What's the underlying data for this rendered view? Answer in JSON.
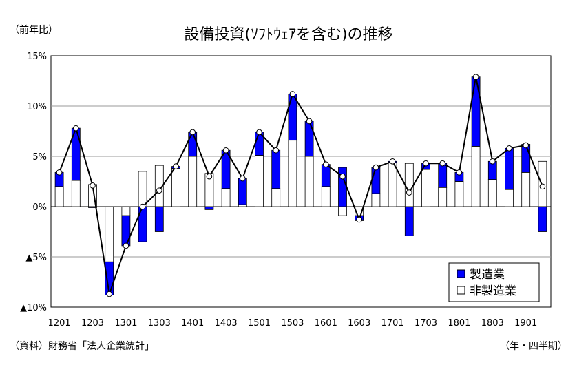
{
  "chart_data": {
    "type": "bar",
    "title": "設備投資(ｿﾌﾄｳｪｱを含む)の推移",
    "y_unit_label": "（前年比）",
    "x_unit_label": "（年・四半期）",
    "source": "（資料）財務省「法人企業統計」",
    "ylim": [
      -10,
      15
    ],
    "y_ticks": [
      15,
      10,
      5,
      0,
      -5,
      -10
    ],
    "y_tick_labels": [
      "15%",
      "10%",
      "5%",
      "0%",
      "▲5%",
      "▲10%"
    ],
    "x_tick_labels": [
      "1201",
      "1203",
      "1301",
      "1303",
      "1401",
      "1403",
      "1501",
      "1503",
      "1601",
      "1603",
      "1701",
      "1703",
      "1801",
      "1803",
      "1901"
    ],
    "quarters": [
      "1201",
      "1202",
      "1203",
      "1204",
      "1301",
      "1302",
      "1303",
      "1304",
      "1401",
      "1402",
      "1403",
      "1404",
      "1501",
      "1502",
      "1503",
      "1504",
      "1601",
      "1602",
      "1603",
      "1604",
      "1701",
      "1702",
      "1703",
      "1704",
      "1801",
      "1802",
      "1803",
      "1804",
      "1901",
      "1902"
    ],
    "grid": true,
    "legend_position": "bottom-right",
    "stacked": true,
    "series": [
      {
        "name": "非製造業",
        "color": "#ffffff",
        "values": [
          2.0,
          2.6,
          2.2,
          -5.5,
          -0.9,
          3.5,
          4.1,
          3.8,
          5.0,
          3.3,
          1.8,
          0.2,
          5.1,
          1.8,
          6.6,
          5.0,
          2.0,
          -0.9,
          -0.9,
          1.3,
          4.4,
          4.3,
          3.7,
          1.9,
          2.5,
          6.0,
          2.7,
          1.7,
          3.4,
          4.5
        ]
      },
      {
        "name": "製造業",
        "color": "#0000ff",
        "values": [
          1.4,
          5.2,
          -0.1,
          -3.3,
          -3.0,
          -3.5,
          -2.5,
          0.2,
          2.4,
          -0.3,
          3.8,
          2.6,
          2.3,
          3.8,
          4.6,
          3.5,
          2.2,
          3.9,
          -0.5,
          2.6,
          0.1,
          -2.9,
          0.6,
          2.4,
          0.9,
          6.9,
          1.8,
          4.1,
          2.8,
          -2.5
        ]
      },
      {
        "name": "total",
        "color": "#000000",
        "values": [
          3.4,
          7.8,
          2.1,
          -8.7,
          -3.9,
          0.0,
          1.6,
          4.0,
          7.4,
          3.0,
          5.6,
          2.8,
          7.4,
          5.6,
          11.2,
          8.5,
          4.2,
          3.0,
          -1.3,
          3.9,
          4.5,
          1.4,
          4.3,
          4.3,
          3.4,
          12.9,
          4.5,
          5.8,
          6.1,
          2.0
        ]
      }
    ]
  }
}
